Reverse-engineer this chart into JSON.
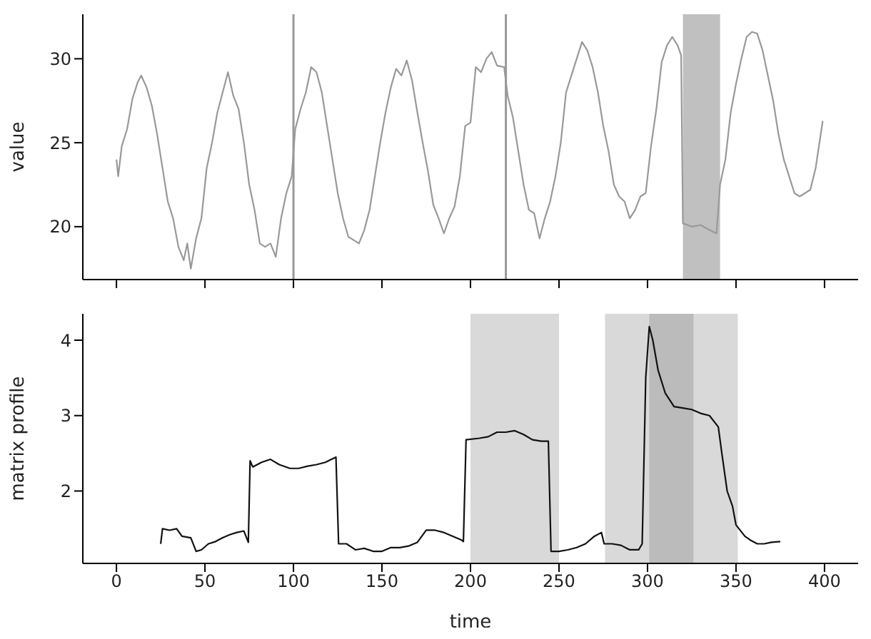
{
  "chart_data": [
    {
      "type": "line",
      "ylabel": "value",
      "xlim": [
        -19,
        419
      ],
      "ylim": [
        16.85,
        32.65
      ],
      "xticks": [
        {
          "value": 0,
          "label": null
        },
        {
          "value": 50,
          "label": null
        },
        {
          "value": 100,
          "label": null
        },
        {
          "value": 150,
          "label": null
        },
        {
          "value": 200,
          "label": null
        },
        {
          "value": 250,
          "label": null
        },
        {
          "value": 300,
          "label": null
        },
        {
          "value": 350,
          "label": null
        },
        {
          "value": 400,
          "label": null
        }
      ],
      "yticks": [
        20,
        25,
        30
      ],
      "tick_labels": "y",
      "color": "#999999",
      "x": [
        0,
        1,
        3,
        6,
        9,
        12,
        14,
        17,
        20,
        23,
        26,
        29,
        32,
        35,
        38,
        40,
        42,
        45,
        48,
        51,
        54,
        57,
        60,
        63,
        66,
        69,
        72,
        75,
        78,
        81,
        84,
        87,
        90,
        93,
        96,
        99,
        101,
        104,
        107,
        110,
        113,
        116,
        119,
        122,
        125,
        128,
        131,
        134,
        137,
        140,
        143,
        146,
        149,
        152,
        155,
        158,
        161,
        164,
        167,
        170,
        173,
        176,
        179,
        182,
        185,
        188,
        191,
        194,
        197,
        200,
        203,
        206,
        209,
        212,
        215,
        219,
        221,
        224,
        227,
        230,
        233,
        236,
        239,
        242,
        245,
        248,
        251,
        254,
        257,
        260,
        263,
        266,
        269,
        272,
        275,
        278,
        281,
        284,
        287,
        290,
        293,
        296,
        299,
        302,
        305,
        308,
        311,
        314,
        317,
        319,
        320,
        325,
        330,
        335,
        339,
        341,
        344,
        347,
        350,
        353,
        356,
        359,
        362,
        365,
        368,
        371,
        374,
        377,
        380,
        383,
        386,
        389,
        392,
        395,
        399
      ],
      "values": [
        24,
        23,
        24.8,
        25.8,
        27.6,
        28.6,
        29,
        28.3,
        27.2,
        25.5,
        23.5,
        21.5,
        20.5,
        18.8,
        18,
        19,
        17.5,
        19.3,
        20.5,
        23.5,
        25,
        26.8,
        28,
        29.2,
        27.8,
        27,
        25,
        22.5,
        21,
        19,
        18.8,
        19,
        18.2,
        20.5,
        22,
        23,
        25.8,
        27,
        28,
        29.5,
        29.2,
        28,
        26,
        24,
        22,
        20.5,
        19.4,
        19.2,
        19,
        19.8,
        21,
        23,
        25,
        26.8,
        28.3,
        29.4,
        29,
        29.9,
        28.7,
        26.8,
        25,
        23.3,
        21.3,
        20.5,
        19.6,
        20.5,
        21.2,
        23,
        26,
        26.2,
        29.5,
        29.2,
        30,
        30.4,
        29.6,
        29.5,
        27.8,
        26.5,
        24.5,
        22.5,
        21,
        20.8,
        19.3,
        20.5,
        21.5,
        23,
        25,
        28,
        29,
        30,
        31,
        30.5,
        29.5,
        28,
        26,
        24.5,
        22.5,
        21.8,
        21.5,
        20.5,
        21,
        21.8,
        22,
        24.8,
        27,
        29.8,
        30.8,
        31.3,
        30.8,
        30.2,
        20.2,
        20,
        20.1,
        19.8,
        19.6,
        22.5,
        24,
        26.8,
        28.5,
        30,
        31.3,
        31.6,
        31.5,
        30.5,
        29,
        27.5,
        25.5,
        24,
        23,
        22,
        21.8,
        22,
        22.2,
        23.5,
        26.3
      ],
      "ref_lines": [
        {
          "axis": "x",
          "value": 100,
          "color": "#999999"
        },
        {
          "axis": "x",
          "value": 220,
          "color": "#999999"
        }
      ],
      "bands": [
        {
          "axis": "x",
          "from": 320,
          "to": 341,
          "color": "#c0c0c0"
        }
      ]
    },
    {
      "type": "line",
      "xlabel": "time",
      "ylabel": "matrix profile",
      "xlim": [
        -19,
        419
      ],
      "ylim": [
        1.04,
        4.35
      ],
      "xticks": [
        0,
        50,
        100,
        150,
        200,
        250,
        300,
        350,
        400
      ],
      "yticks": [
        2,
        3,
        4
      ],
      "color": "#111111",
      "x": [
        25,
        26,
        30,
        34,
        37,
        42,
        45,
        48,
        52,
        56,
        60,
        64,
        68,
        72,
        74.5,
        75.5,
        77,
        82,
        87,
        92,
        98,
        103,
        108,
        113,
        118,
        124,
        125.5,
        130,
        135,
        140,
        145,
        150,
        155,
        160,
        165,
        170,
        175,
        180,
        185,
        190,
        195,
        196,
        197.5,
        205,
        210,
        215,
        220,
        225,
        230,
        235,
        240,
        244,
        245.5,
        250,
        255,
        260,
        265,
        270,
        274,
        275.5,
        280,
        285,
        290,
        295,
        297,
        299,
        301,
        303,
        306,
        310,
        315,
        320,
        325,
        330,
        335,
        340,
        342,
        345,
        348,
        350,
        355,
        358,
        362,
        366,
        370,
        375
      ],
      "values": [
        1.3,
        1.5,
        1.48,
        1.5,
        1.4,
        1.38,
        1.2,
        1.22,
        1.3,
        1.33,
        1.38,
        1.42,
        1.45,
        1.47,
        1.32,
        2.4,
        2.32,
        2.38,
        2.42,
        2.35,
        2.3,
        2.3,
        2.33,
        2.35,
        2.38,
        2.45,
        1.3,
        1.3,
        1.22,
        1.24,
        1.2,
        1.2,
        1.25,
        1.25,
        1.27,
        1.32,
        1.48,
        1.48,
        1.45,
        1.4,
        1.35,
        1.33,
        2.68,
        2.7,
        2.72,
        2.78,
        2.78,
        2.8,
        2.75,
        2.68,
        2.66,
        2.66,
        1.2,
        1.2,
        1.22,
        1.25,
        1.3,
        1.4,
        1.45,
        1.3,
        1.3,
        1.28,
        1.22,
        1.22,
        1.3,
        3.5,
        4.18,
        4.0,
        3.6,
        3.3,
        3.12,
        3.1,
        3.08,
        3.03,
        3.0,
        2.85,
        2.5,
        2.0,
        1.8,
        1.55,
        1.4,
        1.35,
        1.3,
        1.3,
        1.32,
        1.33
      ],
      "bands": [
        {
          "axis": "x",
          "from": 200,
          "to": 250,
          "color": "#d9d9d9"
        },
        {
          "axis": "x",
          "from": 276,
          "to": 351,
          "color": "#d9d9d9"
        },
        {
          "axis": "x",
          "from": 301,
          "to": 326,
          "color": "#bbbbbb"
        }
      ]
    }
  ]
}
